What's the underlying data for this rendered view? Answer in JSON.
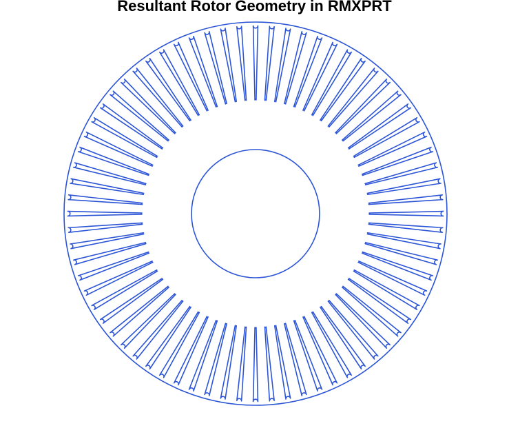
{
  "title": "Resultant Rotor Geometry in RMXPRT",
  "diagram": {
    "slot_count": 72,
    "stroke_color": "#2b54d6",
    "background_color": "#ffffff"
  }
}
